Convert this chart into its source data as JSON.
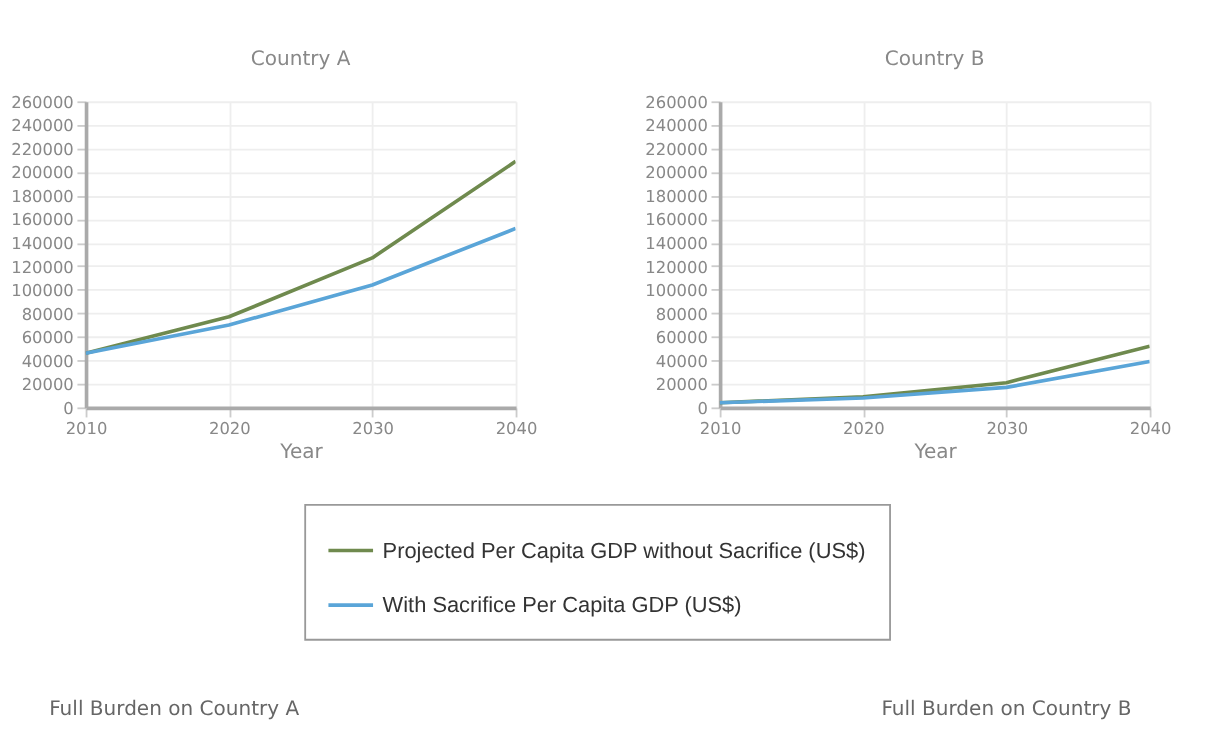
{
  "chart_data": [
    {
      "type": "line",
      "title": "Country A",
      "xlabel": "Year",
      "x": [
        2010,
        2020,
        2030,
        2040
      ],
      "xlim": [
        2010,
        2040
      ],
      "xticks": [
        2010,
        2020,
        2030,
        2040
      ],
      "ylim": [
        0,
        260000
      ],
      "yticks": [
        0,
        20000,
        40000,
        60000,
        80000,
        100000,
        120000,
        140000,
        160000,
        180000,
        200000,
        220000,
        240000,
        260000
      ],
      "grid": true,
      "legend": "bottom",
      "marker": "none",
      "line_style": "solid",
      "series": [
        {
          "name": "Projected Per Capita GDP without Sacrifice (US$)",
          "color": "#6f8a4e",
          "values": [
            46000,
            77000,
            127000,
            209000
          ]
        },
        {
          "name": "With Sacrifice Per Capita GDP (US$)",
          "color": "#5aa5d8",
          "values": [
            46000,
            70000,
            104000,
            152000
          ]
        }
      ],
      "annotations": [
        "Full Burden on Country A"
      ]
    },
    {
      "type": "line",
      "title": "Country B",
      "xlabel": "Year",
      "x": [
        2010,
        2020,
        2030,
        2040
      ],
      "xlim": [
        2010,
        2040
      ],
      "xticks": [
        2010,
        2020,
        2030,
        2040
      ],
      "ylim": [
        0,
        260000
      ],
      "yticks": [
        0,
        20000,
        40000,
        60000,
        80000,
        100000,
        120000,
        140000,
        160000,
        180000,
        200000,
        220000,
        240000,
        260000
      ],
      "grid": true,
      "legend": "bottom",
      "marker": "none",
      "line_style": "solid",
      "series": [
        {
          "name": "Projected Per Capita GDP without Sacrifice (US$)",
          "color": "#6f8a4e",
          "values": [
            4000,
            9000,
            21000,
            52000
          ]
        },
        {
          "name": "With Sacrifice Per Capita GDP (US$)",
          "color": "#5aa5d8",
          "values": [
            4000,
            8000,
            17000,
            39000
          ]
        }
      ],
      "annotations": [
        "Full Burden on Country B"
      ]
    }
  ]
}
